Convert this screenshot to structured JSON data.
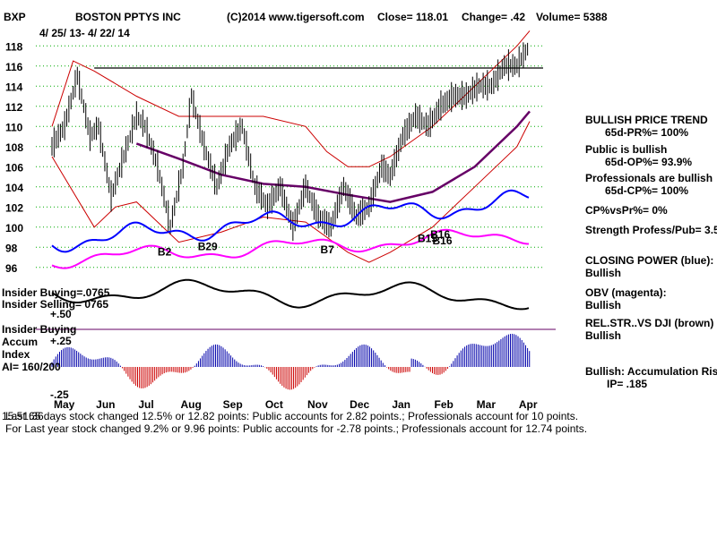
{
  "header": {
    "symbol": "BXP",
    "company": "BOSTON PPTYS INC",
    "copyright": "(C)2014 www.tigersoft.com",
    "close_label": "Close=  118.01",
    "change_label": "Change= .42",
    "volume_label": "Volume= 5388",
    "date_range": "4/ 25/ 13-  4/ 22/ 14"
  },
  "right_panel": {
    "trend_title": "BULLISH PRICE TREND",
    "pr": "65d-PR%= 100%",
    "public_title": "Public is bullish",
    "op": "65d-OP%= 93.9%",
    "prof_title": "Professionals are bullish",
    "cp": "65d-CP%= 100%",
    "cpvspr": "CP%vsPr%=  0%",
    "strength": "Strength Profess/Pub= 3.5",
    "closing_power_title": "CLOSING POWER (blue):",
    "closing_power_value": "Bullish",
    "obv_title": "OBV (magenta):",
    "obv_value": "Bullish",
    "relstr_title": "REL.STR..VS DJI (brown)",
    "relstr_value": "Bullish",
    "accum_title": "Bullish: Accumulation Rising",
    "ip": "IP=  .185"
  },
  "left_labels": {
    "insider_buying_1": "Insider Buying=.0765",
    "insider_selling": "Insider Selling= 0765",
    "plus50": "+.50",
    "insider_buying_2": "Insider Buying",
    "accum": "Accum",
    "plus25": "+.25",
    "index": "Index",
    "ai": "AI= 160/200",
    "minus25": "-.25"
  },
  "footer": {
    "line1": "Last 65 days stock changed  12.5% or  12.82 points:  Public accounts for  2.82 points.;  Professionals account for  10 points.",
    "line1_overlay": "15:51:36",
    "line2": "For Last year stock changed  9.2% or  9.96 points:  Public accounts for -2.78 points.;  Professionals account for  12.74 points."
  },
  "annotations": [
    {
      "text": "B2",
      "month": 2.5,
      "y": 97.2
    },
    {
      "text": "B29",
      "month": 3.45,
      "y": 97.7
    },
    {
      "text": "B7",
      "month": 6.35,
      "y": 97.4
    },
    {
      "text": "B16",
      "month": 8.95,
      "y": 98.9
    },
    {
      "text": "B15",
      "month": 8.65,
      "y": 98.5
    },
    {
      "text": "B16",
      "month": 9.0,
      "y": 98.3
    }
  ],
  "colors": {
    "price": "#000000",
    "bands": "#cc0000",
    "ma": "#660066",
    "closing_power": "#0000ff",
    "obv": "#ff00ff",
    "accum_pos": "#0000aa",
    "accum_neg": "#cc0000",
    "grid": "#00aa00",
    "resistance": "#000000",
    "axis_line": "#660066"
  },
  "chart_data": {
    "type": "line",
    "title": "BOSTON PPTYS INC",
    "xlabel": "",
    "ylabel": "",
    "x_categories": [
      "May",
      "Jun",
      "Jul",
      "Aug",
      "Sep",
      "Oct",
      "Nov",
      "Dec",
      "Jan",
      "Feb",
      "Mar",
      "Apr"
    ],
    "y_ticks": [
      96,
      98,
      100,
      102,
      104,
      106,
      108,
      110,
      112,
      114,
      116,
      118
    ],
    "ylim": [
      95,
      119
    ],
    "grid": true,
    "resistance_line": 115.8,
    "series": [
      {
        "name": "price",
        "x": [
          0,
          0.3,
          0.6,
          0.9,
          1.1,
          1.4,
          1.7,
          2.0,
          2.2,
          2.5,
          2.8,
          3.1,
          3.3,
          3.6,
          3.9,
          4.2,
          4.5,
          4.8,
          5.1,
          5.4,
          5.7,
          6.0,
          6.3,
          6.6,
          6.9,
          7.2,
          7.5,
          7.8,
          8.0,
          8.3,
          8.6,
          8.9,
          9.2,
          9.5,
          9.8,
          10.1,
          10.4,
          10.7,
          11.0,
          11.3
        ],
        "values": [
          108,
          110,
          115,
          109,
          110,
          103,
          107,
          111,
          110,
          106,
          100,
          106,
          113,
          108,
          104,
          108,
          110,
          104,
          102,
          104,
          100,
          104,
          101,
          100,
          104,
          101,
          102,
          106,
          105,
          109,
          111,
          110,
          112,
          113,
          113,
          114,
          114,
          116,
          116,
          118
        ]
      },
      {
        "name": "moving_average",
        "x": [
          2.0,
          3.0,
          4.0,
          5.0,
          6.0,
          7.0,
          8.0,
          9.0,
          10.0,
          11.0,
          11.3
        ],
        "values": [
          108.3,
          106.8,
          105.2,
          104.3,
          104.0,
          103.2,
          102.5,
          103.5,
          106.0,
          110.0,
          111.5
        ]
      },
      {
        "name": "upper_band",
        "x": [
          0,
          0.5,
          1.0,
          2.0,
          3.0,
          4.0,
          5.0,
          6.0,
          6.5,
          7.0,
          7.5,
          8.0,
          9.0,
          10.0,
          11.0,
          11.3
        ],
        "values": [
          110,
          116.5,
          115.5,
          113,
          111,
          111,
          111,
          110,
          107.5,
          106,
          106,
          107,
          110,
          114,
          118,
          119.5
        ]
      },
      {
        "name": "lower_band",
        "x": [
          0,
          1.0,
          1.5,
          2.0,
          2.5,
          3.0,
          4.0,
          5.0,
          6.0,
          7.0,
          7.5,
          8.0,
          9.0,
          10.0,
          11.0,
          11.3
        ],
        "values": [
          107,
          100,
          102,
          102.5,
          100.5,
          98.5,
          99.5,
          101,
          100.5,
          97.5,
          96.5,
          97.5,
          100,
          104,
          108,
          110.5
        ]
      }
    ]
  }
}
